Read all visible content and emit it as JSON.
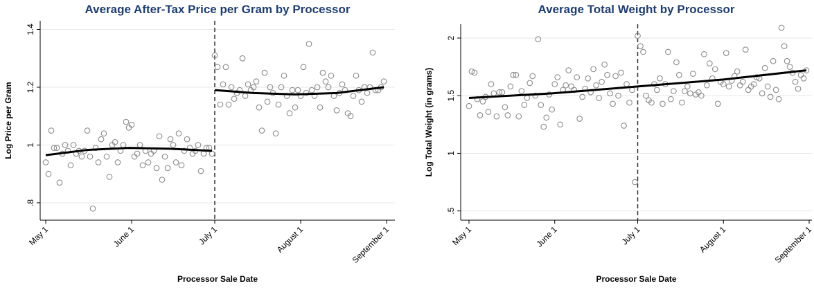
{
  "chart_data": [
    {
      "type": "scatter",
      "title": "Average After-Tax Price per Gram by Processor",
      "x_label": "Processor Sale Date",
      "y_label": "Log Price per Gram",
      "xlim": [
        -2,
        126
      ],
      "xticks": [
        {
          "value": 0,
          "label": "May 1"
        },
        {
          "value": 31,
          "label": "June 1"
        },
        {
          "value": 61,
          "label": "July 1"
        },
        {
          "value": 92,
          "label": "August 1"
        },
        {
          "value": 123,
          "label": "September 1"
        }
      ],
      "ylim": [
        0.74,
        1.43
      ],
      "yticks": [
        {
          "value": 0.8,
          "label": ".8"
        },
        1,
        1.2,
        1.4
      ],
      "grid": true,
      "vline": 61,
      "series": [
        {
          "color": "#8c8c8c",
          "x": [
            0,
            1,
            2,
            3,
            4,
            5,
            6,
            7,
            8,
            9,
            10,
            11,
            12,
            13,
            14,
            15,
            16,
            17,
            18,
            19,
            20,
            21,
            22,
            23,
            24,
            25,
            26,
            27,
            28,
            29,
            30,
            31,
            32,
            33,
            34,
            35,
            36,
            37,
            38,
            39,
            40,
            41,
            42,
            43,
            44,
            45,
            46,
            47,
            48,
            49,
            50,
            51,
            52,
            53,
            54,
            55,
            56,
            57,
            58,
            59,
            60,
            61,
            62,
            63,
            64,
            65,
            66,
            67,
            68,
            69,
            70,
            71,
            72,
            73,
            74,
            75,
            76,
            77,
            78,
            79,
            80,
            81,
            82,
            83,
            84,
            85,
            86,
            87,
            88,
            89,
            90,
            91,
            92,
            93,
            94,
            95,
            96,
            97,
            98,
            99,
            100,
            101,
            102,
            103,
            104,
            105,
            106,
            107,
            108,
            109,
            110,
            111,
            112,
            113,
            114,
            115,
            116,
            117,
            118,
            119,
            120,
            121,
            122
          ],
          "values": [
            0.94,
            0.9,
            1.05,
            0.99,
            0.99,
            0.87,
            0.97,
            1.0,
            0.98,
            0.93,
            1.0,
            0.97,
            0.98,
            0.96,
            0.98,
            1.05,
            0.96,
            0.78,
            0.99,
            0.94,
            1.02,
            1.04,
            0.96,
            0.89,
            1.0,
            1.01,
            0.94,
            0.98,
            1.0,
            1.08,
            1.06,
            1.07,
            0.96,
            0.97,
            1.0,
            0.93,
            0.98,
            0.94,
            0.97,
            0.98,
            0.92,
            1.03,
            0.88,
            0.96,
            0.92,
            1.02,
            1.0,
            0.94,
            1.04,
            0.93,
            0.98,
            1.02,
            0.99,
            0.97,
            0.98,
            1.0,
            0.91,
            0.97,
            0.99,
            0.99,
            0.97,
            1.31,
            1.27,
            1.14,
            1.21,
            1.27,
            1.14,
            1.2,
            1.16,
            1.18,
            1.19,
            1.3,
            1.17,
            1.21,
            1.19,
            1.2,
            1.22,
            1.13,
            1.05,
            1.25,
            1.15,
            1.2,
            1.18,
            1.04,
            1.14,
            1.2,
            1.24,
            1.17,
            1.11,
            1.19,
            1.13,
            1.19,
            1.17,
            1.27,
            1.18,
            1.35,
            1.19,
            1.17,
            1.2,
            1.13,
            1.25,
            1.22,
            1.2,
            1.24,
            1.17,
            1.12,
            1.18,
            1.21,
            1.19,
            1.11,
            1.1,
            1.17,
            1.24,
            1.19,
            1.15,
            1.2,
            1.18,
            1.2,
            1.32,
            1.19,
            1.19,
            1.2,
            1.22
          ]
        }
      ],
      "fit_lines": [
        {
          "x": [
            0,
            15,
            30,
            45,
            60
          ],
          "values": [
            0.965,
            0.983,
            0.99,
            0.987,
            0.98
          ]
        },
        {
          "x": [
            61,
            75,
            90,
            105,
            122
          ],
          "values": [
            1.19,
            1.18,
            1.175,
            1.18,
            1.2
          ]
        }
      ]
    },
    {
      "type": "scatter",
      "title": "Average Total Weight by Processor",
      "x_label": "Processor Sale Date",
      "y_label": "Log Total Weight (in grams)",
      "xlim": [
        -3,
        124
      ],
      "xticks": [
        {
          "value": 0,
          "label": "May 1"
        },
        {
          "value": 31,
          "label": "June 1"
        },
        {
          "value": 61,
          "label": "July 1"
        },
        {
          "value": 92,
          "label": "August 1"
        },
        {
          "value": 123,
          "label": "September 1"
        }
      ],
      "ylim": [
        0.42,
        2.12
      ],
      "yticks": [
        {
          "value": 0.5,
          "label": ".5"
        },
        1,
        1.5,
        2
      ],
      "grid": true,
      "vline": 61,
      "series": [
        {
          "color": "#8c8c8c",
          "x": [
            0,
            1,
            2,
            3,
            4,
            5,
            6,
            7,
            8,
            9,
            10,
            11,
            12,
            13,
            14,
            15,
            16,
            17,
            18,
            19,
            20,
            21,
            22,
            23,
            24,
            25,
            26,
            27,
            28,
            29,
            30,
            31,
            32,
            33,
            34,
            35,
            36,
            37,
            38,
            39,
            40,
            41,
            42,
            43,
            44,
            45,
            46,
            47,
            48,
            49,
            50,
            51,
            52,
            53,
            54,
            55,
            56,
            57,
            58,
            59,
            60,
            61,
            62,
            63,
            64,
            65,
            66,
            67,
            68,
            69,
            70,
            71,
            72,
            73,
            74,
            75,
            76,
            77,
            78,
            79,
            80,
            81,
            82,
            83,
            84,
            85,
            86,
            87,
            88,
            89,
            90,
            91,
            92,
            93,
            94,
            95,
            96,
            97,
            98,
            99,
            100,
            101,
            102,
            103,
            104,
            105,
            106,
            107,
            108,
            109,
            110,
            111,
            112,
            113,
            114,
            115,
            116,
            117,
            118,
            119,
            120,
            121,
            122
          ],
          "values": [
            1.41,
            1.71,
            1.7,
            1.47,
            1.33,
            1.45,
            1.49,
            1.36,
            1.6,
            1.52,
            1.32,
            1.53,
            1.53,
            1.4,
            1.33,
            1.58,
            1.68,
            1.68,
            1.32,
            1.54,
            1.42,
            1.48,
            1.61,
            1.67,
            1.5,
            1.99,
            1.42,
            1.23,
            1.31,
            1.51,
            1.38,
            1.6,
            1.66,
            1.25,
            1.55,
            1.59,
            1.72,
            1.58,
            1.55,
            1.66,
            1.3,
            1.49,
            1.56,
            1.65,
            1.53,
            1.73,
            1.59,
            1.48,
            1.62,
            1.77,
            1.68,
            1.52,
            1.43,
            1.67,
            1.5,
            1.7,
            1.24,
            1.6,
            1.44,
            1.55,
            0.75,
            2.02,
            1.93,
            1.88,
            1.5,
            1.46,
            1.44,
            1.6,
            1.55,
            1.65,
            1.43,
            1.6,
            1.88,
            1.47,
            1.54,
            1.79,
            1.68,
            1.44,
            1.54,
            1.58,
            1.52,
            1.69,
            1.51,
            1.53,
            1.5,
            1.86,
            1.59,
            1.78,
            1.65,
            1.73,
            1.43,
            1.62,
            1.6,
            1.87,
            1.58,
            1.63,
            1.67,
            1.71,
            1.59,
            1.62,
            1.9,
            1.55,
            1.58,
            1.6,
            1.66,
            1.65,
            1.52,
            1.74,
            1.58,
            1.49,
            1.8,
            1.55,
            1.47,
            2.09,
            1.93,
            1.8,
            1.75,
            1.7,
            1.62,
            1.56,
            1.68,
            1.65,
            1.72
          ]
        }
      ],
      "fit_lines": [
        {
          "x": [
            0,
            30,
            61,
            92,
            122
          ],
          "values": [
            1.48,
            1.52,
            1.58,
            1.64,
            1.72
          ]
        }
      ]
    }
  ]
}
